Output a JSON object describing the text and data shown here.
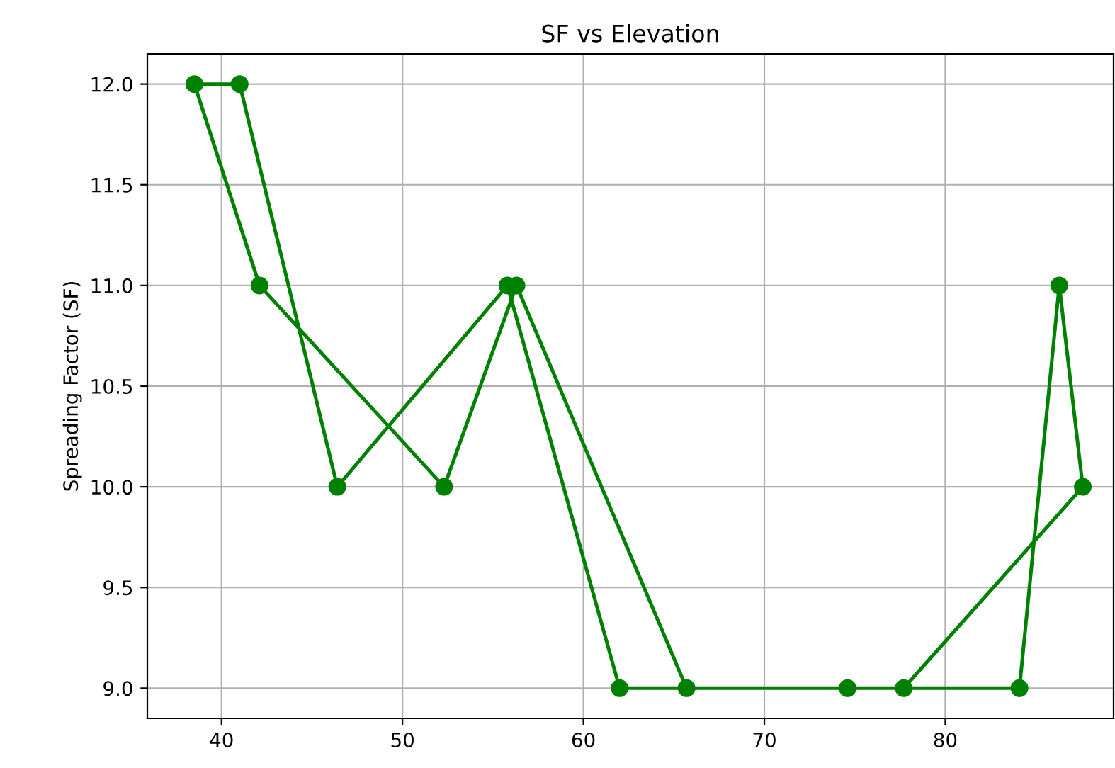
{
  "chart_data": {
    "type": "line",
    "title": "SF vs Elevation",
    "ylabel": "Spreading Factor (SF)",
    "x": [
      65.7,
      56.3,
      52.3,
      42.1,
      38.5,
      41.0,
      46.4,
      55.8,
      62.0,
      74.6,
      84.1,
      86.3,
      87.6,
      77.7
    ],
    "series": [
      {
        "color": "#008000",
        "values": [
          9,
          11,
          10,
          11,
          12,
          12,
          10,
          11,
          9,
          9,
          9,
          11,
          10,
          9
        ]
      }
    ],
    "xlim": [
      35.9,
      89.3
    ],
    "xticks": [
      40,
      50,
      60,
      70,
      80
    ],
    "ylim": [
      8.85,
      12.15
    ],
    "yticks": [
      {
        "value": 9,
        "label": "9.0"
      },
      9.5,
      {
        "value": 10,
        "label": "10.0"
      },
      10.5,
      {
        "value": 11,
        "label": "11.0"
      },
      11.5,
      {
        "value": 12,
        "label": "12.0"
      }
    ],
    "grid": true,
    "marker": "circle",
    "line_style": "solid"
  }
}
